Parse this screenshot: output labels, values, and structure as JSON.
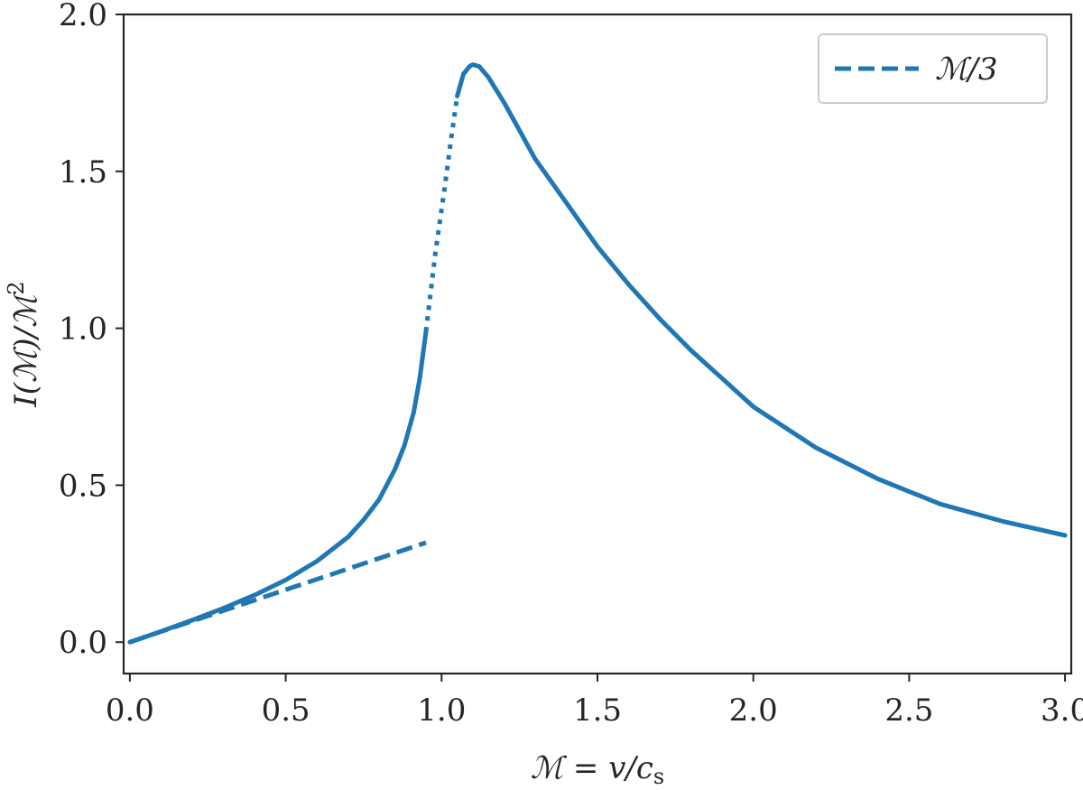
{
  "chart_data": {
    "type": "line",
    "xlabel": "ℳ = v/c",
    "xlabel_sub": "s",
    "ylabel": "I(ℳ)/ℳ",
    "ylabel_sup": "2",
    "xlim": [
      -0.02,
      3.02
    ],
    "ylim": [
      -0.1,
      2.0
    ],
    "xticks": [
      0.0,
      0.5,
      1.0,
      1.5,
      2.0,
      2.5,
      3.0
    ],
    "xtick_labels": [
      "0.0",
      "0.5",
      "1.0",
      "1.5",
      "2.0",
      "2.5",
      "3.0"
    ],
    "yticks": [
      0.0,
      0.5,
      1.0,
      1.5,
      2.0
    ],
    "ytick_labels": [
      "0.0",
      "0.5",
      "1.0",
      "1.5",
      "2.0"
    ],
    "grid": false,
    "legend_position": "top-right",
    "color": "#1f77b4",
    "series": [
      {
        "style": "solid",
        "x": [
          0.0,
          0.1,
          0.2,
          0.3,
          0.4,
          0.5,
          0.6,
          0.7,
          0.75,
          0.8,
          0.85,
          0.88,
          0.91,
          0.93,
          0.95
        ],
        "y": [
          0.0,
          0.034,
          0.07,
          0.108,
          0.15,
          0.198,
          0.258,
          0.335,
          0.39,
          0.455,
          0.55,
          0.625,
          0.73,
          0.84,
          0.99
        ]
      },
      {
        "style": "dotted",
        "x": [
          0.95,
          0.98,
          1.01,
          1.03,
          1.05
        ],
        "y": [
          0.99,
          1.24,
          1.45,
          1.6,
          1.74
        ]
      },
      {
        "style": "solid",
        "x": [
          1.05,
          1.07,
          1.09,
          1.1,
          1.12,
          1.15,
          1.2,
          1.25,
          1.3,
          1.4,
          1.5,
          1.6,
          1.7,
          1.8,
          1.9,
          2.0,
          2.2,
          2.4,
          2.6,
          2.8,
          3.0
        ],
        "y": [
          1.74,
          1.81,
          1.835,
          1.84,
          1.835,
          1.8,
          1.72,
          1.63,
          1.54,
          1.4,
          1.26,
          1.14,
          1.03,
          0.93,
          0.84,
          0.75,
          0.62,
          0.52,
          0.44,
          0.385,
          0.34
        ]
      },
      {
        "name": "ℳ/3",
        "style": "dashed",
        "x": [
          0.0,
          0.95
        ],
        "y": [
          0.0,
          0.317
        ]
      }
    ]
  }
}
